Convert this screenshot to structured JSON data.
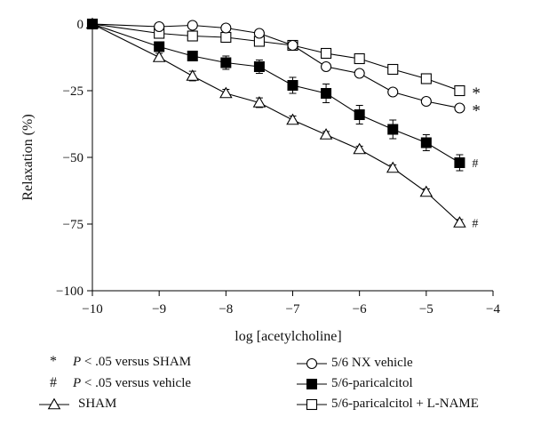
{
  "chart_data": {
    "type": "line",
    "xlabel": "log [acetylcholine]",
    "ylabel": "Relaxation (%)",
    "xlim": [
      -10,
      -4
    ],
    "ylim": [
      -100,
      0
    ],
    "xticks": [
      -10,
      -9,
      -8,
      -7,
      -6,
      -5,
      -4
    ],
    "yticks": [
      0,
      -25,
      -50,
      -75,
      -100
    ],
    "xtick_labels": [
      "−10",
      "−9",
      "−8",
      "−7",
      "−6",
      "−5",
      "−4"
    ],
    "ytick_labels": [
      "0",
      "−25",
      "−50",
      "−75",
      "−100"
    ],
    "grid": false,
    "legend_position": "bottom",
    "series": [
      {
        "name": "SHAM",
        "marker": "open-triangle",
        "x": [
          -10,
          -9,
          -8.5,
          -8,
          -7.5,
          -7,
          -6.5,
          -6,
          -5.5,
          -5,
          -4.5
        ],
        "y": [
          0,
          -12.5,
          -19.5,
          -26,
          -29.5,
          -36,
          -41.5,
          -47,
          -54,
          -63,
          -74.5
        ],
        "err": [
          0,
          1.5,
          1.8,
          1.5,
          1.8,
          1.5,
          1.2,
          1.2,
          1.2,
          1.2,
          1.2
        ],
        "end_annotation": "#"
      },
      {
        "name": "5/6 NX vehicle",
        "marker": "open-circle",
        "x": [
          -10,
          -9,
          -8.5,
          -8,
          -7.5,
          -7,
          -6.5,
          -6,
          -5.5,
          -5,
          -4.5
        ],
        "y": [
          0,
          -1,
          -0.5,
          -1.5,
          -3.5,
          -8,
          -16,
          -18.5,
          -25.5,
          -29,
          -31.5
        ],
        "err": [
          0,
          0.8,
          0.8,
          0.8,
          1,
          1,
          1,
          1,
          1,
          1,
          1
        ],
        "end_annotation": "*"
      },
      {
        "name": "5/6-paricalcitol",
        "marker": "filled-square",
        "x": [
          -10,
          -9,
          -8.5,
          -8,
          -7.5,
          -7,
          -6.5,
          -6,
          -5.5,
          -5,
          -4.5
        ],
        "y": [
          0,
          -8.5,
          -12,
          -14.5,
          -16,
          -23,
          -26,
          -34,
          -39.5,
          -44.5,
          -52
        ],
        "err": [
          0,
          1.5,
          1.5,
          2.5,
          2.5,
          3,
          3.5,
          3.5,
          3.5,
          3,
          3
        ],
        "end_annotation": "#"
      },
      {
        "name": "5/6-paricalcitol + L-NAME",
        "marker": "open-square",
        "x": [
          -10,
          -9,
          -8.5,
          -8,
          -7.5,
          -7,
          -6.5,
          -6,
          -5.5,
          -5,
          -4.5
        ],
        "y": [
          0,
          -3.5,
          -4.5,
          -5,
          -6.5,
          -8,
          -11,
          -13,
          -17,
          -20.5,
          -25
        ],
        "err": [
          0,
          0.8,
          0.8,
          0.8,
          0.8,
          0.8,
          0.8,
          0.8,
          0.8,
          0.8,
          0.8
        ],
        "end_annotation": "*"
      }
    ]
  },
  "legend": {
    "star_symbol": "*",
    "star_p": "P",
    "star_text": " < .05 versus SHAM",
    "hash_symbol": "#",
    "hash_p": "P",
    "hash_text": " < .05 versus vehicle",
    "sham_label": "SHAM",
    "nx_label": "5/6 NX vehicle",
    "pari_label": "5/6-paricalcitol",
    "lname_label": "5/6-paricalcitol + L-NAME"
  }
}
